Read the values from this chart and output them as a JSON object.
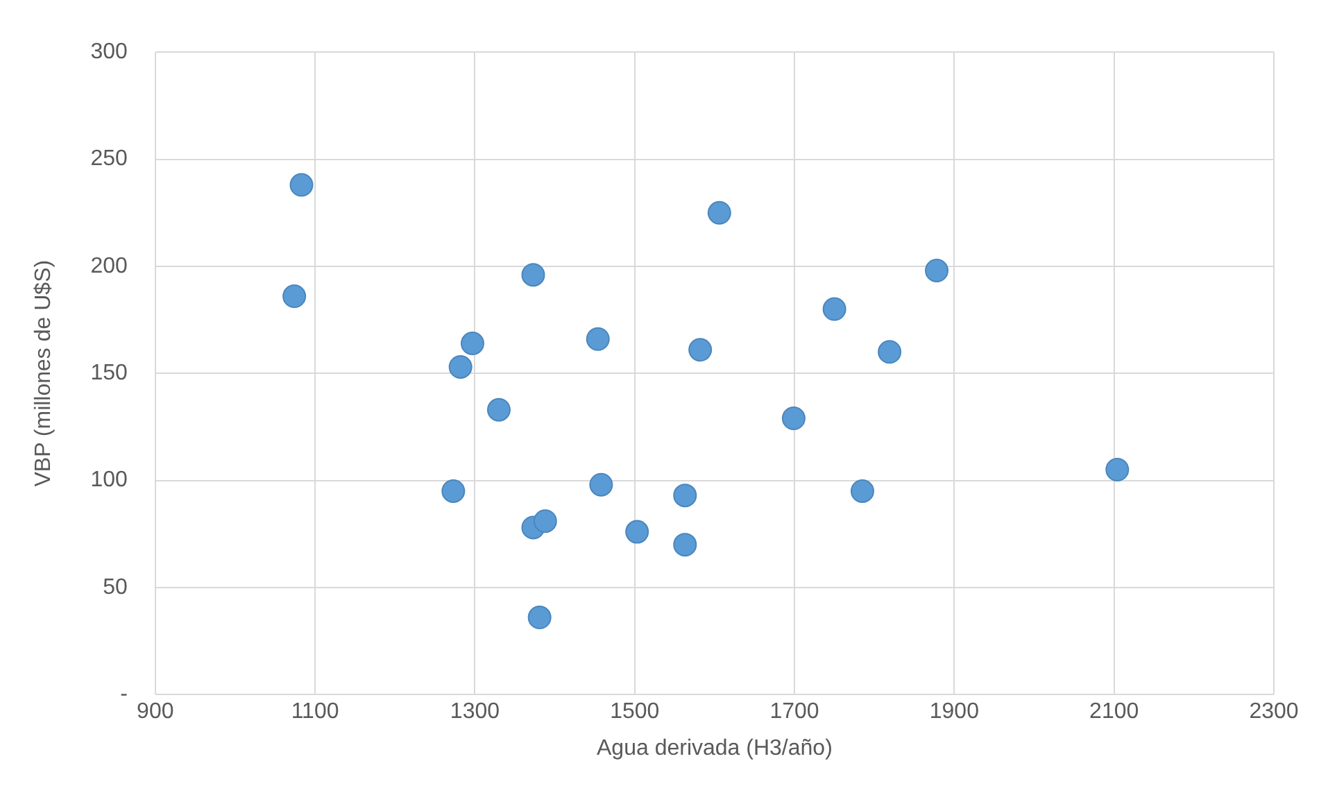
{
  "chart_data": {
    "type": "scatter",
    "xlabel": "Agua derivada (H3/año)",
    "ylabel": "VBP (millones de U$S)",
    "x": [
      1083,
      1074,
      1297,
      1282,
      1373,
      1330,
      1273,
      1373,
      1388,
      1381,
      1454,
      1458,
      1503,
      1563,
      1563,
      1582,
      1606,
      1699,
      1750,
      1785,
      1819,
      1878,
      2104
    ],
    "values": [
      238,
      186,
      164,
      153,
      196,
      133,
      95,
      78,
      81,
      36,
      166,
      98,
      76,
      93,
      70,
      161,
      225,
      129,
      180,
      95,
      160,
      198,
      105
    ],
    "color": "#5b9bd5",
    "marker": "circle",
    "xlim": [
      900,
      2300
    ],
    "xticks": [
      900,
      1100,
      1300,
      1500,
      1700,
      1900,
      2100,
      2300
    ],
    "ylim": [
      0,
      300
    ],
    "yticks": [
      {
        "value": 0,
        "label": "-"
      },
      50,
      100,
      150,
      200,
      250,
      300
    ],
    "grid": true,
    "legend": false
  }
}
